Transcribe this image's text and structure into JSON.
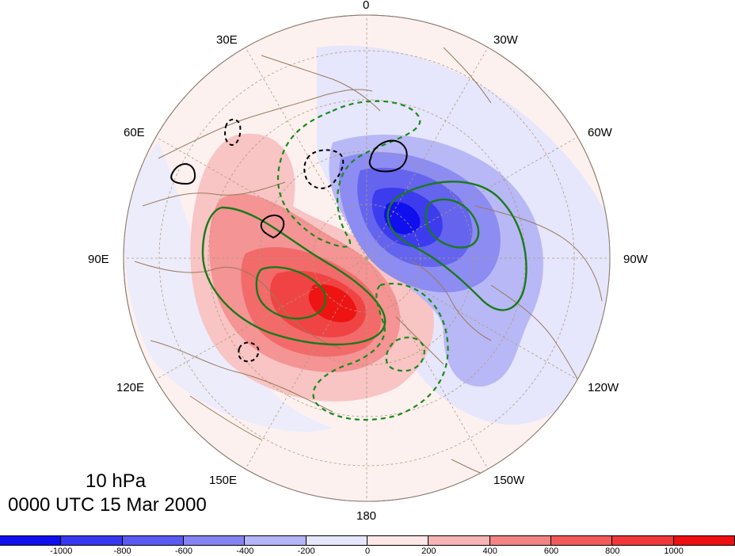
{
  "map": {
    "projection": "north polar stereographic",
    "longitude_labels": {
      "top": "0",
      "upper_left": "30E",
      "upper_right": "30W",
      "left_upper": "60E",
      "right_upper": "60W",
      "left": "90E",
      "right": "90W",
      "left_lower": "120E",
      "right_lower": "120W",
      "lower_left": "150E",
      "lower_right": "150W",
      "bottom": "180"
    },
    "level_label": "10 hPa",
    "time_label": "0000 UTC 15 Mar 2000",
    "contours": {
      "solid_positive_color": "#1a7a1a",
      "dashed_negative_color": "#1a8a1a",
      "black_contour_color": "#000000"
    }
  },
  "colorbar": {
    "colors": [
      "#1010ee",
      "#3838f0",
      "#5a5af2",
      "#8484f4",
      "#b4b4f8",
      "#e6e6fc",
      "#fde6e6",
      "#f8b4b4",
      "#f48484",
      "#f25a5a",
      "#f03838",
      "#ee1010"
    ],
    "tick_labels": [
      "-1000",
      "-800",
      "-600",
      "-400",
      "-200",
      "0",
      "200",
      "400",
      "600",
      "800",
      "1000"
    ]
  }
}
